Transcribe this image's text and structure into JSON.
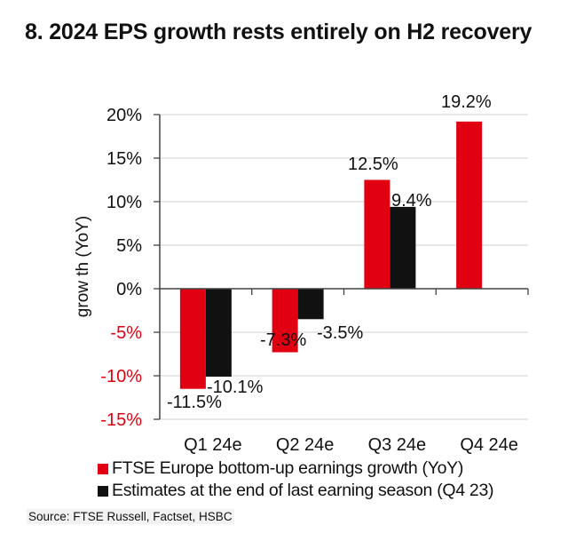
{
  "title": "8. 2024 EPS growth rests entirely on H2 recovery",
  "source": "Source: FTSE Russell, Factset, HSBC",
  "colors": {
    "series1": "#e00012",
    "series2": "#111111",
    "negative_tick": "#e00012",
    "positive_tick": "#111111",
    "grid": "#e0e0e0"
  },
  "chart_data": {
    "type": "bar",
    "title": "8. 2024 EPS growth rests entirely on H2 recovery",
    "xlabel": "",
    "ylabel": "grow th (YoY)",
    "ylim": [
      -15,
      20
    ],
    "yticks": [
      20,
      15,
      10,
      5,
      0,
      -5,
      -10,
      -15
    ],
    "ytick_labels": [
      "20%",
      "15%",
      "10%",
      "5%",
      "0%",
      "-5%",
      "-10%",
      "-15%"
    ],
    "grid": true,
    "legend_position": "bottom",
    "categories": [
      "Q1 24e",
      "Q2 24e",
      "Q3 24e",
      "Q4 24e"
    ],
    "series": [
      {
        "name": "FTSE Europe bottom-up earnings growth (YoY)",
        "values": [
          -11.5,
          -7.3,
          12.5,
          19.2
        ],
        "labels": [
          "-11.5%",
          "-7.3%",
          "12.5%",
          "19.2%"
        ]
      },
      {
        "name": "Estimates at the end of last earning season (Q4 23)",
        "values": [
          -10.1,
          -3.5,
          9.4,
          null
        ],
        "labels": [
          "-10.1%",
          "-3.5%",
          "9.4%",
          null
        ]
      }
    ]
  }
}
